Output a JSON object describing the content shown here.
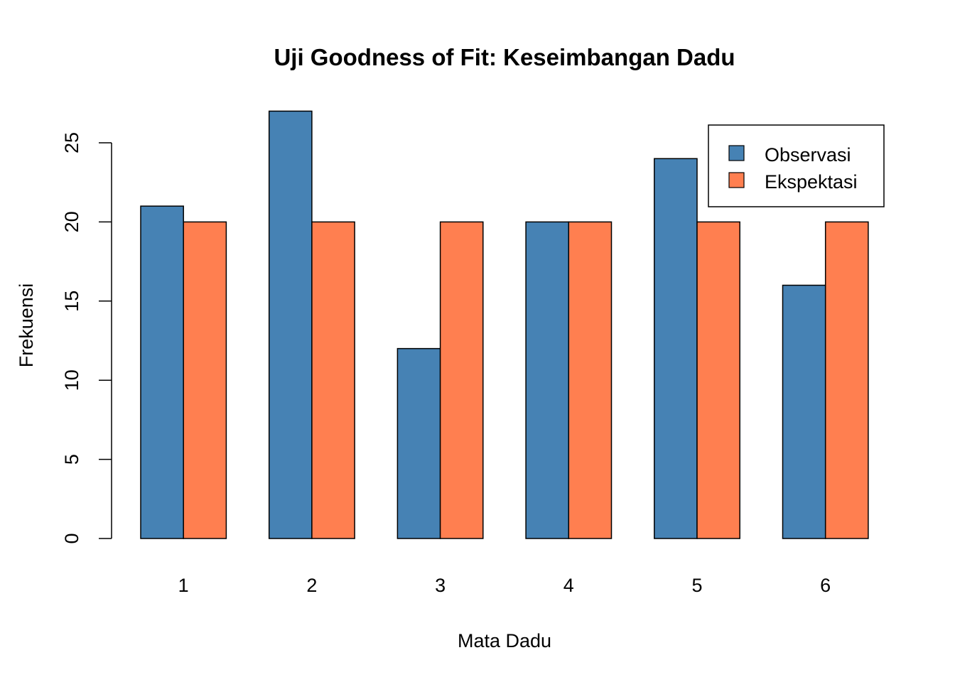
{
  "chart_data": {
    "type": "bar",
    "title": "Uji Goodness of Fit: Keseimbangan Dadu",
    "xlabel": "Mata Dadu",
    "ylabel": "Frekuensi",
    "categories": [
      "1",
      "2",
      "3",
      "4",
      "5",
      "6"
    ],
    "series": [
      {
        "name": "Observasi",
        "color": "#4682B4",
        "values": [
          21,
          27,
          12,
          20,
          24,
          16
        ]
      },
      {
        "name": "Ekspektasi",
        "color": "#FF7F50",
        "values": [
          20,
          20,
          20,
          20,
          20,
          20
        ]
      }
    ],
    "yticks": [
      0,
      5,
      10,
      15,
      20,
      25
    ],
    "ylim": [
      0,
      27
    ],
    "grid": false,
    "legend_position": "top-right"
  }
}
